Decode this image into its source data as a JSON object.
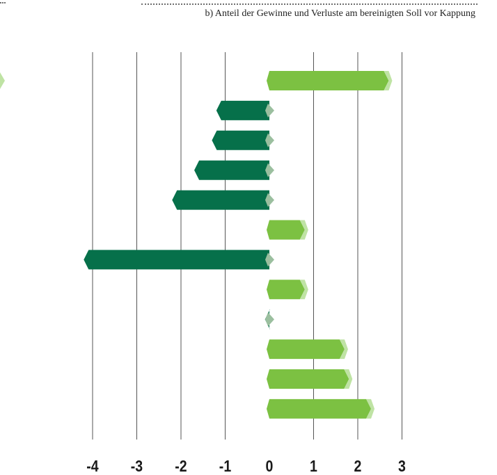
{
  "header": {
    "subtitle": "b) Anteil der Gewinne und Verluste am bereinigten Soll vor Kappung"
  },
  "colors": {
    "negative": "#06704a",
    "positive": "#7cc142",
    "positive_tip": "#bfe3a4",
    "zero_tip": "#9bbf9f",
    "grid": "#555555",
    "tick_text": "#1a1a1a"
  },
  "chart_data": {
    "type": "bar",
    "orientation": "horizontal",
    "title": "",
    "subtitle": "b) Anteil der Gewinne und Verluste am bereinigten Soll vor Kappung",
    "xlabel": "",
    "ylabel": "",
    "xlim": [
      -4,
      3
    ],
    "ticks": [
      -4,
      -3,
      -2,
      -1,
      0,
      1,
      2,
      3
    ],
    "tick_labels": [
      "-4",
      "-3",
      "-2",
      "-1",
      "0",
      "1",
      "2",
      "3"
    ],
    "categories": [
      "",
      "",
      "",
      "",
      "",
      "",
      "",
      "",
      "",
      "",
      "",
      ""
    ],
    "values": [
      2.7,
      -1.2,
      -1.3,
      -1.7,
      -2.2,
      0.8,
      -4.2,
      0.8,
      -0.1,
      1.7,
      1.8,
      2.3
    ],
    "grid": true,
    "legend": "none"
  }
}
